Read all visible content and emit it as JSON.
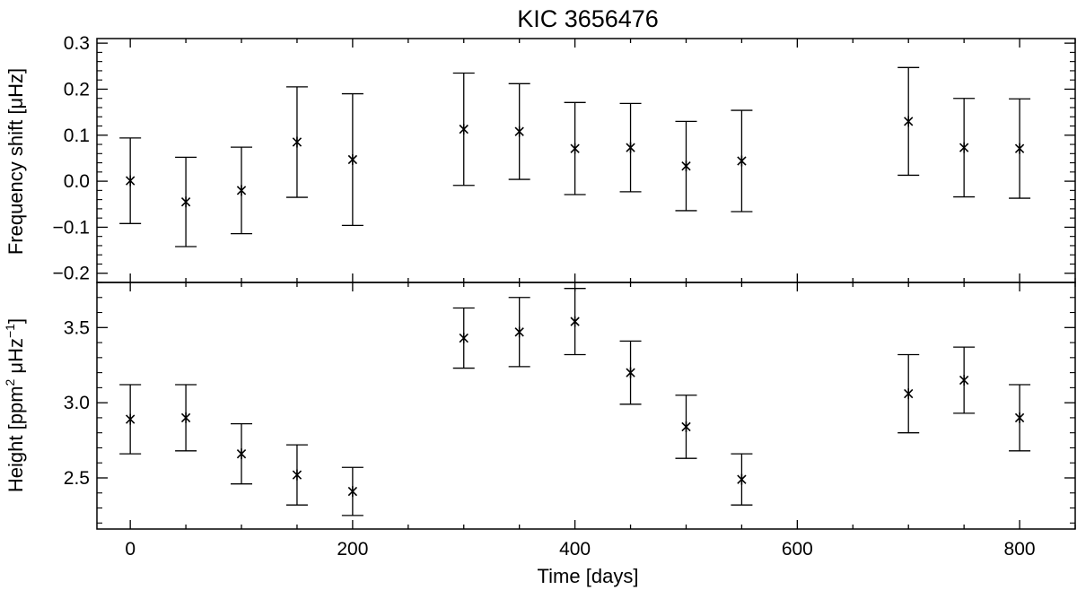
{
  "chart_data": [
    {
      "type": "scatter",
      "title": "KIC 3656476",
      "xlabel": "",
      "ylabel": "Frequency shift [μHz]",
      "xlim": [
        -30,
        850
      ],
      "ylim": [
        -0.22,
        0.31
      ],
      "xticks": [
        0,
        200,
        400,
        600,
        800
      ],
      "yticks": [
        -0.2,
        -0.1,
        0.0,
        0.1,
        0.2,
        0.3
      ],
      "ytick_labels": [
        "−0.2",
        "−0.1",
        "0.0",
        "0.1",
        "0.2",
        "0.3"
      ],
      "grid": false,
      "x": [
        0,
        50,
        100,
        150,
        200,
        300,
        350,
        400,
        450,
        500,
        550,
        700,
        750,
        800
      ],
      "y": [
        0.001,
        -0.045,
        -0.02,
        0.085,
        0.047,
        0.113,
        0.108,
        0.071,
        0.073,
        0.033,
        0.044,
        0.13,
        0.073,
        0.071
      ],
      "yerr": [
        0.093,
        0.097,
        0.094,
        0.12,
        0.143,
        0.122,
        0.104,
        0.1,
        0.096,
        0.097,
        0.11,
        0.117,
        0.107,
        0.108
      ]
    },
    {
      "type": "scatter",
      "title": "",
      "xlabel": "Time [days]",
      "ylabel_parts": [
        "Height [ppm",
        "2",
        " μHz",
        "−1",
        "]"
      ],
      "xlim": [
        -30,
        850
      ],
      "ylim": [
        2.16,
        3.8
      ],
      "xticks": [
        0,
        200,
        400,
        600,
        800
      ],
      "xtick_labels": [
        "0",
        "200",
        "400",
        "600",
        "800"
      ],
      "yticks": [
        2.5,
        3.0,
        3.5
      ],
      "ytick_labels": [
        "2.5",
        "3.0",
        "3.5"
      ],
      "grid": false,
      "x": [
        0,
        50,
        100,
        150,
        200,
        300,
        350,
        400,
        450,
        500,
        550,
        700,
        750,
        800
      ],
      "y": [
        2.89,
        2.9,
        2.66,
        2.52,
        2.41,
        3.43,
        3.47,
        3.54,
        3.2,
        2.84,
        2.49,
        3.06,
        3.15,
        2.9
      ],
      "yerr": [
        0.23,
        0.22,
        0.2,
        0.2,
        0.16,
        0.2,
        0.23,
        0.22,
        0.21,
        0.21,
        0.17,
        0.26,
        0.22,
        0.22
      ]
    }
  ]
}
